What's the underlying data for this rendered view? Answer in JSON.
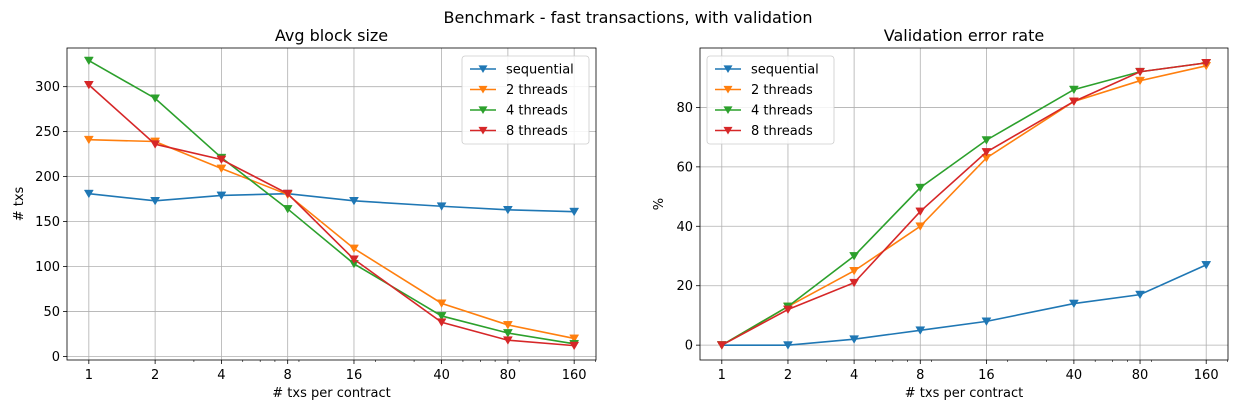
{
  "suptitle": "Benchmark - fast transactions, with validation",
  "chart_data": [
    {
      "type": "line",
      "title": "Avg block size",
      "xlabel": "# txs per contract",
      "ylabel": "# txs",
      "xscale": "log",
      "x": [
        1,
        2,
        4,
        8,
        16,
        40,
        80,
        160
      ],
      "xticklabels": [
        "1",
        "2",
        "4",
        "8",
        "16",
        "40",
        "80",
        "160"
      ],
      "yticks": [
        0,
        50,
        100,
        150,
        200,
        250,
        300
      ],
      "ylim": [
        -4,
        343
      ],
      "grid": true,
      "legend": "upper right",
      "series": [
        {
          "name": "sequential",
          "color": "#1f77b4",
          "values": [
            181,
            173,
            179,
            181,
            173,
            167,
            163,
            161
          ]
        },
        {
          "name": "2 threads",
          "color": "#ff7f0e",
          "values": [
            241,
            239,
            209,
            180,
            120,
            59,
            35,
            20
          ]
        },
        {
          "name": "4 threads",
          "color": "#2ca02c",
          "values": [
            329,
            287,
            221,
            164,
            103,
            45,
            26,
            14
          ]
        },
        {
          "name": "8 threads",
          "color": "#d62728",
          "values": [
            302,
            236,
            219,
            181,
            108,
            38,
            18,
            12
          ]
        }
      ]
    },
    {
      "type": "line",
      "title": "Validation error rate",
      "xlabel": "# txs per contract",
      "ylabel": "%",
      "xscale": "log",
      "x": [
        1,
        2,
        4,
        8,
        16,
        40,
        80,
        160
      ],
      "xticklabels": [
        "1",
        "2",
        "4",
        "8",
        "16",
        "40",
        "80",
        "160"
      ],
      "yticks": [
        0,
        20,
        40,
        60,
        80
      ],
      "ylim": [
        -5,
        100
      ],
      "grid": true,
      "legend": "upper left",
      "series": [
        {
          "name": "sequential",
          "color": "#1f77b4",
          "values": [
            0,
            0,
            2,
            5,
            8,
            14,
            17,
            27
          ]
        },
        {
          "name": "2 threads",
          "color": "#ff7f0e",
          "values": [
            0,
            13,
            25,
            40,
            63,
            82,
            89,
            94
          ]
        },
        {
          "name": "4 threads",
          "color": "#2ca02c",
          "values": [
            0,
            13,
            30,
            53,
            69,
            86,
            92,
            95
          ]
        },
        {
          "name": "8 threads",
          "color": "#d62728",
          "values": [
            0,
            12,
            21,
            45,
            65,
            82,
            92,
            95
          ]
        }
      ]
    }
  ]
}
